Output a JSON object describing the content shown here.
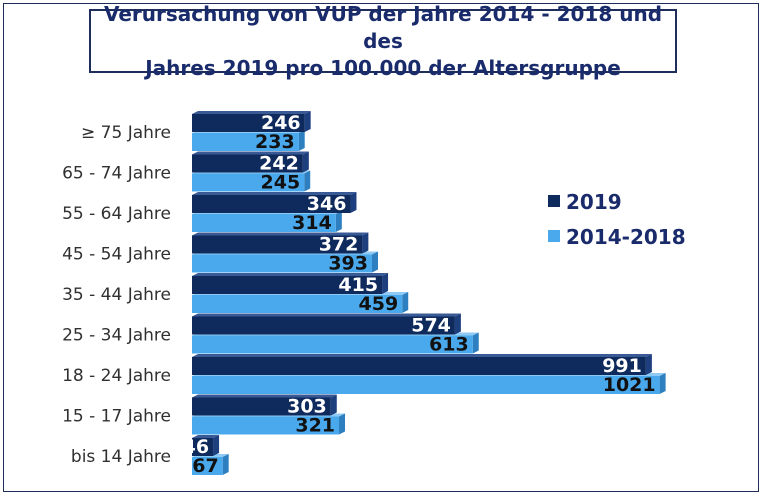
{
  "title_lines": [
    "Verursachung von VUP der Jahre 2014 - 2018 und des",
    "Jahres 2019 pro 100.000 der Altersgruppe"
  ],
  "colors": {
    "series_2019": "#0f2a5c",
    "series_2019_side": "#1d3f7d",
    "series_prev": "#4aa8ec",
    "series_prev_side": "#2e7fbf",
    "title": "#1a2b6b"
  },
  "chart_data": {
    "type": "bar",
    "orientation": "horizontal",
    "title": "Verursachung von VUP der Jahre 2014 - 2018 und des Jahres 2019 pro 100.000 der Altersgruppe",
    "categories": [
      "≥ 75 Jahre",
      "65 - 74 Jahre",
      "55 - 64 Jahre",
      "45 - 54 Jahre",
      "35 - 44 Jahre",
      "25 - 34 Jahre",
      "18 - 24 Jahre",
      "15 - 17 Jahre",
      "bis 14 Jahre"
    ],
    "series": [
      {
        "name": "2019",
        "values": [
          246,
          242,
          346,
          372,
          415,
          574,
          991,
          303,
          46
        ]
      },
      {
        "name": "2014-2018",
        "values": [
          233,
          245,
          314,
          393,
          459,
          613,
          1021,
          321,
          67
        ]
      }
    ],
    "xlim": [
      0,
      1021
    ],
    "grid": false,
    "legend_position": "right",
    "data_labels": true
  }
}
